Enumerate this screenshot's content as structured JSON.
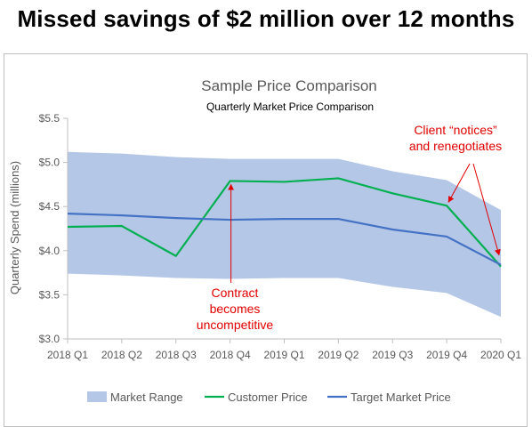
{
  "headline": "Missed savings of $2 million over 12 months",
  "chart_data": {
    "type": "line",
    "title": "Sample Price Comparison",
    "subtitle": "Quarterly Market Price Comparison",
    "xlabel": "",
    "ylabel": "Quarterly Spend (millions)",
    "ylim": [
      3.0,
      5.5
    ],
    "yticks": [
      "$3.0",
      "$3.5",
      "$4.0",
      "$4.5",
      "$5.0",
      "$5.5"
    ],
    "categories": [
      "2018 Q1",
      "2018 Q2",
      "2018 Q3",
      "2018 Q4",
      "2019 Q1",
      "2019 Q2",
      "2019 Q3",
      "2019 Q4",
      "2020 Q1"
    ],
    "band": {
      "name": "Market Range",
      "upper": [
        5.12,
        5.1,
        5.06,
        5.04,
        5.04,
        5.04,
        4.9,
        4.8,
        4.46
      ],
      "lower": [
        3.74,
        3.72,
        3.69,
        3.68,
        3.69,
        3.69,
        3.59,
        3.52,
        3.25
      ],
      "color": "#b4c7e7"
    },
    "series": [
      {
        "name": "Customer Price",
        "values": [
          4.27,
          4.28,
          3.94,
          4.79,
          4.78,
          4.82,
          4.65,
          4.51,
          3.82
        ],
        "color": "#00b050"
      },
      {
        "name": "Target Market Price",
        "values": [
          4.42,
          4.4,
          4.37,
          4.35,
          4.36,
          4.36,
          4.24,
          4.16,
          3.84
        ],
        "color": "#4472c4"
      }
    ],
    "legend_position": "bottom",
    "grid": false,
    "annotations": [
      {
        "lines": [
          "Contract",
          "becomes",
          "uncompetitive"
        ],
        "color": "#e00000"
      },
      {
        "lines": [
          "Client “notices”",
          "and renegotiates"
        ],
        "color": "#e00000"
      }
    ]
  }
}
